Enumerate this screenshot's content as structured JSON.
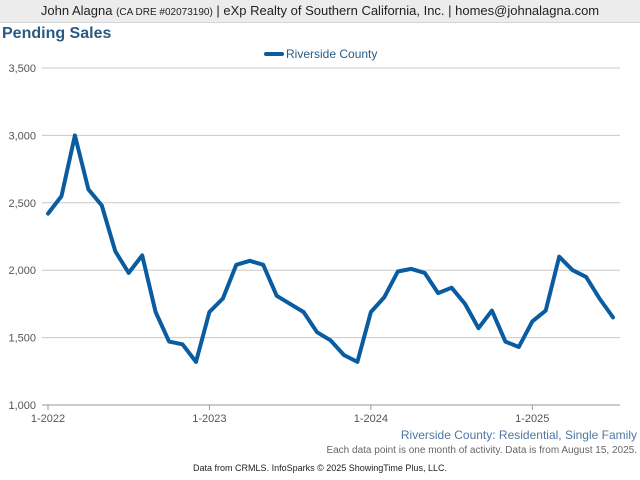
{
  "header": {
    "name": "John Alagna",
    "license": "(CA DRE #02073190)",
    "rest": "| eXp Realty of Southern California, Inc. | homes@johnalagna.com"
  },
  "footer": {
    "subtitle": "Riverside County: Residential, Single Family",
    "note": "Each data point is one month of activity. Data is from August 15, 2025.",
    "credit": "Data from CRMLS. InfoSparks © 2025 ShowingTime Plus, LLC."
  },
  "colors": {
    "series": "#0a5ca0",
    "title": "#2a5a84",
    "grid": "#c8c8c8"
  },
  "chart_data": {
    "type": "line",
    "title": "Pending Sales",
    "xlabel": "",
    "ylabel": "",
    "ylim": [
      1000,
      3500
    ],
    "yticks": [
      1000,
      1500,
      2000,
      2500,
      3000,
      3500
    ],
    "ytick_labels": [
      "1,000",
      "1,500",
      "2,000",
      "2,500",
      "3,000",
      "3,500"
    ],
    "xticks": [
      "2022-01",
      "2023-01",
      "2024-01",
      "2025-01"
    ],
    "xtick_labels": [
      "1-2022",
      "1-2023",
      "1-2024",
      "1-2025"
    ],
    "grid": true,
    "legend": "top-center",
    "x": [
      "2022-01",
      "2022-02",
      "2022-03",
      "2022-04",
      "2022-05",
      "2022-06",
      "2022-07",
      "2022-08",
      "2022-09",
      "2022-10",
      "2022-11",
      "2022-12",
      "2023-01",
      "2023-02",
      "2023-03",
      "2023-04",
      "2023-05",
      "2023-06",
      "2023-07",
      "2023-08",
      "2023-09",
      "2023-10",
      "2023-11",
      "2023-12",
      "2024-01",
      "2024-02",
      "2024-03",
      "2024-04",
      "2024-05",
      "2024-06",
      "2024-07",
      "2024-08",
      "2024-09",
      "2024-10",
      "2024-11",
      "2024-12",
      "2025-01",
      "2025-02",
      "2025-03",
      "2025-04",
      "2025-05",
      "2025-06",
      "2025-07"
    ],
    "series": [
      {
        "name": "Riverside County",
        "values": [
          2420,
          2550,
          3000,
          2600,
          2480,
          2140,
          1980,
          2110,
          1690,
          1470,
          1450,
          1320,
          1690,
          1790,
          2040,
          2070,
          2040,
          1810,
          1750,
          1690,
          1540,
          1480,
          1370,
          1320,
          1690,
          1800,
          1990,
          2010,
          1980,
          1830,
          1870,
          1750,
          1570,
          1700,
          1470,
          1430,
          1620,
          1700,
          2100,
          2000,
          1950,
          1790,
          1650
        ]
      }
    ]
  }
}
